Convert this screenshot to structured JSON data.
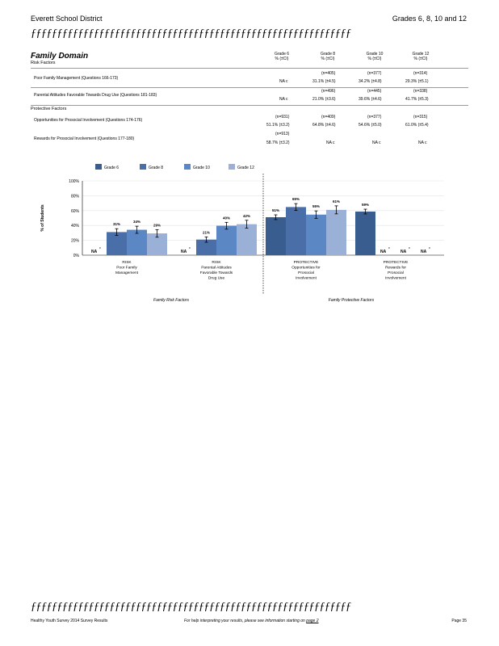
{
  "header": {
    "district": "Everett  School  District",
    "grades": "Grades   6,  8,  10  and   12",
    "rule": "ƒƒƒƒƒƒƒƒƒƒƒƒƒƒƒƒƒƒƒƒƒƒƒƒƒƒƒƒƒƒƒƒƒƒƒƒƒƒƒƒƒƒƒƒƒƒƒƒƒƒƒƒƒƒƒƒƒƒƒƒƒ"
  },
  "domain_title": "Family  Domain",
  "risk_header": "Risk    Factors",
  "protective_header": "Protective    Factors",
  "columns": [
    {
      "grade": "Grade    6",
      "sub": "%  (±CI)"
    },
    {
      "grade": "Grade    8",
      "sub": "%  (±CI)"
    },
    {
      "grade": "Grade    10",
      "sub": "%  (±CI)"
    },
    {
      "grade": "Grade    12",
      "sub": "%  (±CI)"
    }
  ],
  "rows": [
    {
      "label": "Poor   Family   Management        (Questions       166-173)",
      "n": [
        "",
        "(n=405)",
        "(n=377)",
        "(n=314)"
      ],
      "v": [
        "NA  c",
        "31.1%    (±4.5)",
        "34.2%    (±4.8)",
        "29.3%    (±5.1)"
      ]
    },
    {
      "label": "Parental    Attitudes    Favorable      Towards   Drug  Use   (Questions       181-183)",
      "n": [
        "",
        "(n=496)",
        "(n=445)",
        "(n=338)"
      ],
      "v": [
        "NA  c",
        "21.0%    (±3.6)",
        "39.6%    (±4.6)",
        "41.7%    (±5.3)"
      ]
    },
    {
      "label": "Opportunities      for  Prosocial    Involvement           (Questions       174-176)",
      "n": [
        "(n=931)",
        "(n=409)",
        "(n=377)",
        "(n=315)"
      ],
      "v": [
        "51.1%    (±3.2)",
        "64.8%    (±4.6)",
        "54.6%    (±5.0)",
        "61.0%    (±5.4)"
      ]
    },
    {
      "label": "Rewards    for  Prosocial      Involvement          (Questions       177-180)",
      "n": [
        "(n=913)",
        "",
        "",
        ""
      ],
      "v": [
        "58.7%    (±3.2)",
        "NA  c",
        "NA  c",
        "NA  c"
      ]
    }
  ],
  "chart_data": {
    "type": "bar",
    "ylabel": "%    of  Students",
    "ylim": [
      0,
      100
    ],
    "yticks": [
      "0%",
      "20%",
      "40%",
      "60%",
      "80%",
      "100%"
    ],
    "legend_position": "top",
    "series": [
      {
        "name": "Grade    6",
        "color": "#3a5d8f"
      },
      {
        "name": "Grade    8",
        "color": "#4a6ea8"
      },
      {
        "name": "Grade    10",
        "color": "#5b87c4"
      },
      {
        "name": "Grade    12",
        "color": "#9ab0d6"
      }
    ],
    "categories": [
      {
        "label": [
          "RISK",
          "Poor   Family",
          "Management"
        ],
        "values": [
          null,
          31.1,
          34.2,
          29.3
        ],
        "labels": [
          "NA",
          "31%",
          "34%",
          "29%"
        ],
        "ci": [
          null,
          4.5,
          4.8,
          5.1
        ]
      },
      {
        "label": [
          "RISK",
          "Parental    Attitudes",
          "Favorable      Towards",
          "Drug   Use"
        ],
        "values": [
          null,
          21.0,
          39.6,
          41.7
        ],
        "labels": [
          "NA",
          "21%",
          "40%",
          "42%"
        ],
        "ci": [
          null,
          3.6,
          4.6,
          5.3
        ]
      },
      {
        "label": [
          "PROTECTIVE",
          "Opportunities       for",
          "Prosocial",
          "Involvement"
        ],
        "values": [
          51.1,
          64.8,
          54.6,
          61.0
        ],
        "labels": [
          "51%",
          "65%",
          "55%",
          "61%"
        ],
        "ci": [
          3.2,
          4.6,
          5.0,
          5.4
        ]
      },
      {
        "label": [
          "PROTECTIVE",
          "Rewards      for",
          "Prosocial",
          "Involvement"
        ],
        "values": [
          58.7,
          null,
          null,
          null
        ],
        "labels": [
          "59%",
          "NA",
          "NA",
          "NA"
        ],
        "ci": [
          3.2,
          null,
          null,
          null
        ]
      }
    ],
    "na_suffix": "c",
    "group_labels": [
      "Family     Risk    Factors",
      "Family     Protective      Factors"
    ]
  },
  "footer": {
    "left": "Healthy     Youth   Survey    2014   Survey    Results",
    "middle": "For   help  interpreting     your  results,   please   see  information     starting   on ",
    "link": "page  2",
    "right": "Page    35"
  }
}
